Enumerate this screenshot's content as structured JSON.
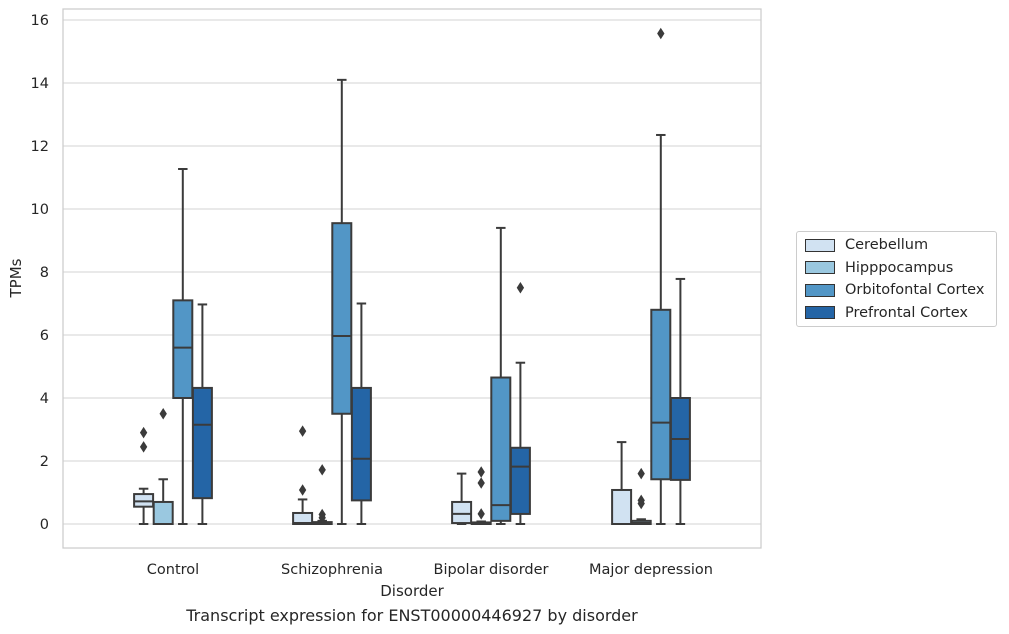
{
  "chart_data": {
    "type": "box",
    "title": "",
    "xlabel": "Disorder",
    "ylabel": "TPMs",
    "caption": "Transcript expression for ENST00000446927 by disorder",
    "ylim": [
      -0.75,
      16.35
    ],
    "yticks": [
      0,
      2,
      4,
      6,
      8,
      10,
      12,
      14,
      16
    ],
    "grid": true,
    "legend_position": "right",
    "categories": [
      "Control",
      "Schizophrenia",
      "Bipolar disorder",
      "Major depression"
    ],
    "series": [
      {
        "name": "Cerebellum",
        "color": "#d1e2f2",
        "boxes": [
          {
            "whislo": 0.0,
            "q1": 0.55,
            "med": 0.72,
            "q3": 0.95,
            "whishi": 1.12,
            "fliers": [
              2.9,
              2.45
            ]
          },
          {
            "whislo": 0.0,
            "q1": 0.0,
            "med": 0.03,
            "q3": 0.35,
            "whishi": 0.78,
            "fliers": [
              2.95,
              1.08
            ]
          },
          {
            "whislo": 0.0,
            "q1": 0.03,
            "med": 0.32,
            "q3": 0.7,
            "whishi": 1.6,
            "fliers": []
          },
          {
            "whislo": 0.0,
            "q1": 0.0,
            "med": 0.0,
            "q3": 1.08,
            "whishi": 2.6,
            "fliers": []
          }
        ]
      },
      {
        "name": "Hipppocampus",
        "color": "#9ac8e0",
        "boxes": [
          {
            "whislo": 0.0,
            "q1": 0.0,
            "med": 0.0,
            "q3": 0.7,
            "whishi": 1.42,
            "fliers": [
              3.5
            ]
          },
          {
            "whislo": 0.0,
            "q1": 0.0,
            "med": 0.02,
            "q3": 0.06,
            "whishi": 0.1,
            "fliers": [
              1.72,
              0.3,
              0.2
            ]
          },
          {
            "whislo": 0.0,
            "q1": 0.0,
            "med": 0.02,
            "q3": 0.05,
            "whishi": 0.08,
            "fliers": [
              1.65,
              1.3,
              0.32
            ]
          },
          {
            "whislo": 0.0,
            "q1": 0.0,
            "med": 0.03,
            "q3": 0.1,
            "whishi": 0.15,
            "fliers": [
              1.6,
              0.75,
              0.65
            ]
          }
        ]
      },
      {
        "name": "Orbitofontal Cortex",
        "color": "#5296c6",
        "boxes": [
          {
            "whislo": 0.0,
            "q1": 4.0,
            "med": 5.6,
            "q3": 7.1,
            "whishi": 11.27,
            "fliers": []
          },
          {
            "whislo": 0.0,
            "q1": 3.5,
            "med": 5.97,
            "q3": 9.55,
            "whishi": 14.1,
            "fliers": []
          },
          {
            "whislo": 0.0,
            "q1": 0.1,
            "med": 0.6,
            "q3": 4.65,
            "whishi": 9.4,
            "fliers": []
          },
          {
            "whislo": 0.0,
            "q1": 1.42,
            "med": 3.22,
            "q3": 6.8,
            "whishi": 12.35,
            "fliers": [
              15.57
            ]
          }
        ]
      },
      {
        "name": "Prefrontal Cortex",
        "color": "#2465a6",
        "boxes": [
          {
            "whislo": 0.0,
            "q1": 0.82,
            "med": 3.15,
            "q3": 4.32,
            "whishi": 6.97,
            "fliers": []
          },
          {
            "whislo": 0.0,
            "q1": 0.75,
            "med": 2.07,
            "q3": 4.32,
            "whishi": 7.0,
            "fliers": []
          },
          {
            "whislo": 0.0,
            "q1": 0.32,
            "med": 1.82,
            "q3": 2.42,
            "whishi": 5.12,
            "fliers": [
              7.5
            ]
          },
          {
            "whislo": 0.0,
            "q1": 1.4,
            "med": 2.7,
            "q3": 4.0,
            "whishi": 7.78,
            "fliers": []
          }
        ]
      }
    ]
  }
}
